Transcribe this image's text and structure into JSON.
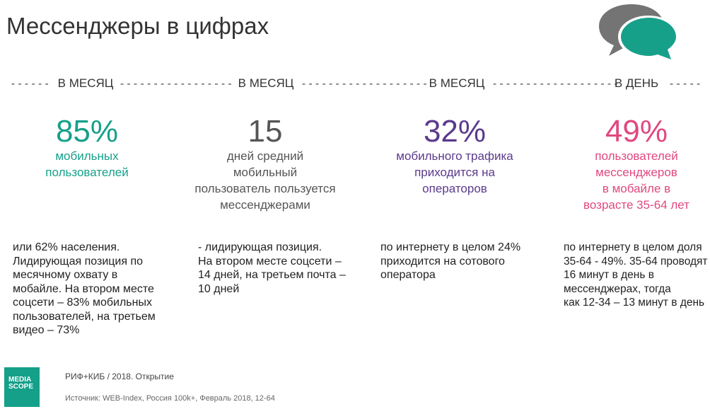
{
  "title": "Мессенджеры в цифрах",
  "icon": "chat-bubbles-icon",
  "colors": {
    "teal": "#16a08a",
    "gray": "#555555",
    "purple": "#5b3a8c",
    "pink": "#e0487f",
    "bubble_gray": "#747474"
  },
  "periods": [
    "В МЕСЯЦ",
    "В МЕСЯЦ",
    "В МЕСЯЦ",
    "В ДЕНЬ"
  ],
  "stats": [
    {
      "value": "85%",
      "desc_lines": [
        "мобильных",
        "пользователей"
      ],
      "note_lines": [
        "или 62% населения.",
        "Лидирующая позиция по",
        "месячному охвату в",
        "мобайле. На втором месте",
        "соцсети – 83% мобильных",
        "пользователей, на третьем",
        "видео – 73%"
      ]
    },
    {
      "value": "15",
      "desc_lines": [
        "дней средний",
        "мобильный",
        "пользователь пользуется",
        "мессенджерами"
      ],
      "note_lines": [
        "- лидирующая позиция.",
        "На втором месте соцсети –",
        "14 дней, на третьем почта –",
        "10 дней"
      ]
    },
    {
      "value": "32%",
      "desc_lines": [
        "мобильного трафика",
        "приходится на",
        "операторов"
      ],
      "note_lines": [
        "по интернету в целом 24%",
        "приходится на сотового",
        "оператора"
      ]
    },
    {
      "value": "49%",
      "desc_lines": [
        "пользователей",
        "мессенджеров",
        "в мобайле в",
        "возрасте 35-64 лет"
      ],
      "note_lines": [
        "по интернету в целом доля",
        "35-64 - 49%. 35-64 проводят",
        "16 минут в день в",
        "мессенджерах, тогда",
        "как 12-34 – 13 минут в день"
      ]
    }
  ],
  "logo": {
    "lines": [
      "MEDIA",
      "SCOPE"
    ]
  },
  "footer": {
    "event": "РИФ+КИБ / 2018. Открытие",
    "source": "Источник: WEB-Index, Россия 100k+, Февраль 2018, 12-64"
  }
}
